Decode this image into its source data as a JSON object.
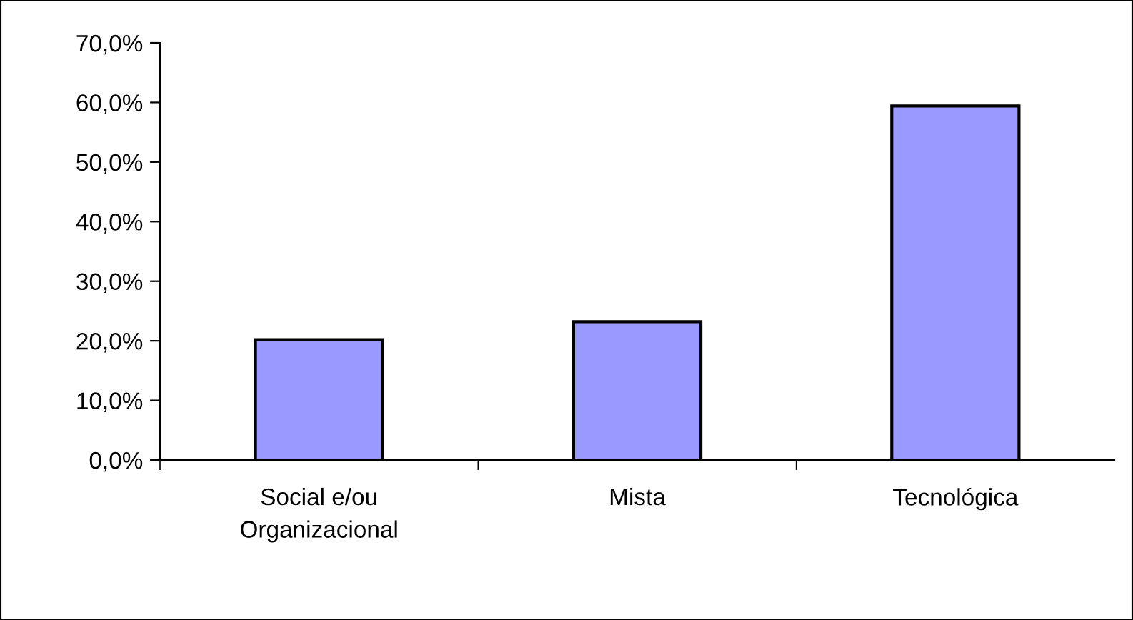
{
  "chart_data": {
    "type": "bar",
    "categories": [
      "Social e/ou\nOrganizacional",
      "Mista",
      "Tecnológica"
    ],
    "values": [
      20.2,
      23.2,
      59.4
    ],
    "color": "#9999ff",
    "ylim": [
      0,
      70
    ],
    "yticks": [
      {
        "value": 0,
        "label": "0,0%"
      },
      {
        "value": 10,
        "label": "10,0%"
      },
      {
        "value": 20,
        "label": "20,0%"
      },
      {
        "value": 30,
        "label": "30,0%"
      },
      {
        "value": 40,
        "label": "40,0%"
      },
      {
        "value": 50,
        "label": "50,0%"
      },
      {
        "value": 60,
        "label": "60,0%"
      },
      {
        "value": 70,
        "label": "70,0%"
      }
    ],
    "grid": false,
    "legend": false
  }
}
